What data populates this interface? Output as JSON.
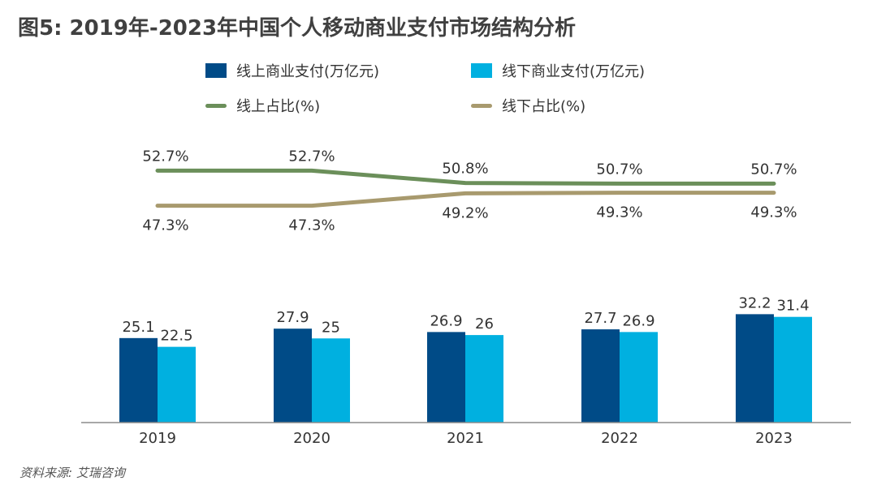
{
  "title": "图5: 2019年-2023年中国个人移动商业支付市场结构分析",
  "source": "资料来源: 艾瑞咨询",
  "colors": {
    "online_bar": "#004b87",
    "offline_bar": "#00b0e0",
    "online_line": "#6b8f5a",
    "offline_line": "#a89a6e"
  },
  "chart_data": {
    "type": "bar",
    "categories": [
      "2019",
      "2020",
      "2021",
      "2022",
      "2023"
    ],
    "series": [
      {
        "name": "线上商业支付(万亿元)",
        "type": "bar",
        "values": [
          25.1,
          27.9,
          26.9,
          27.7,
          32.2
        ],
        "labels": [
          "25.1",
          "27.9",
          "26.9",
          "27.7",
          "32.2"
        ]
      },
      {
        "name": "线下商业支付(万亿元)",
        "type": "bar",
        "values": [
          22.5,
          25,
          26,
          26.9,
          31.4
        ],
        "labels": [
          "22.5",
          "25",
          "26",
          "26.9",
          "31.4"
        ]
      },
      {
        "name": "线上占比(%)",
        "type": "line",
        "values": [
          52.7,
          52.7,
          50.8,
          50.7,
          50.7
        ],
        "labels": [
          "52.7%",
          "52.7%",
          "50.8%",
          "50.7%",
          "50.7%"
        ]
      },
      {
        "name": "线下占比(%)",
        "type": "line",
        "values": [
          47.3,
          47.3,
          49.2,
          49.3,
          49.3
        ],
        "labels": [
          "47.3%",
          "47.3%",
          "49.2%",
          "49.3%",
          "49.3%"
        ]
      }
    ],
    "bar_ylim": [
      0,
      35
    ],
    "grid": false,
    "legend_position": "top"
  }
}
